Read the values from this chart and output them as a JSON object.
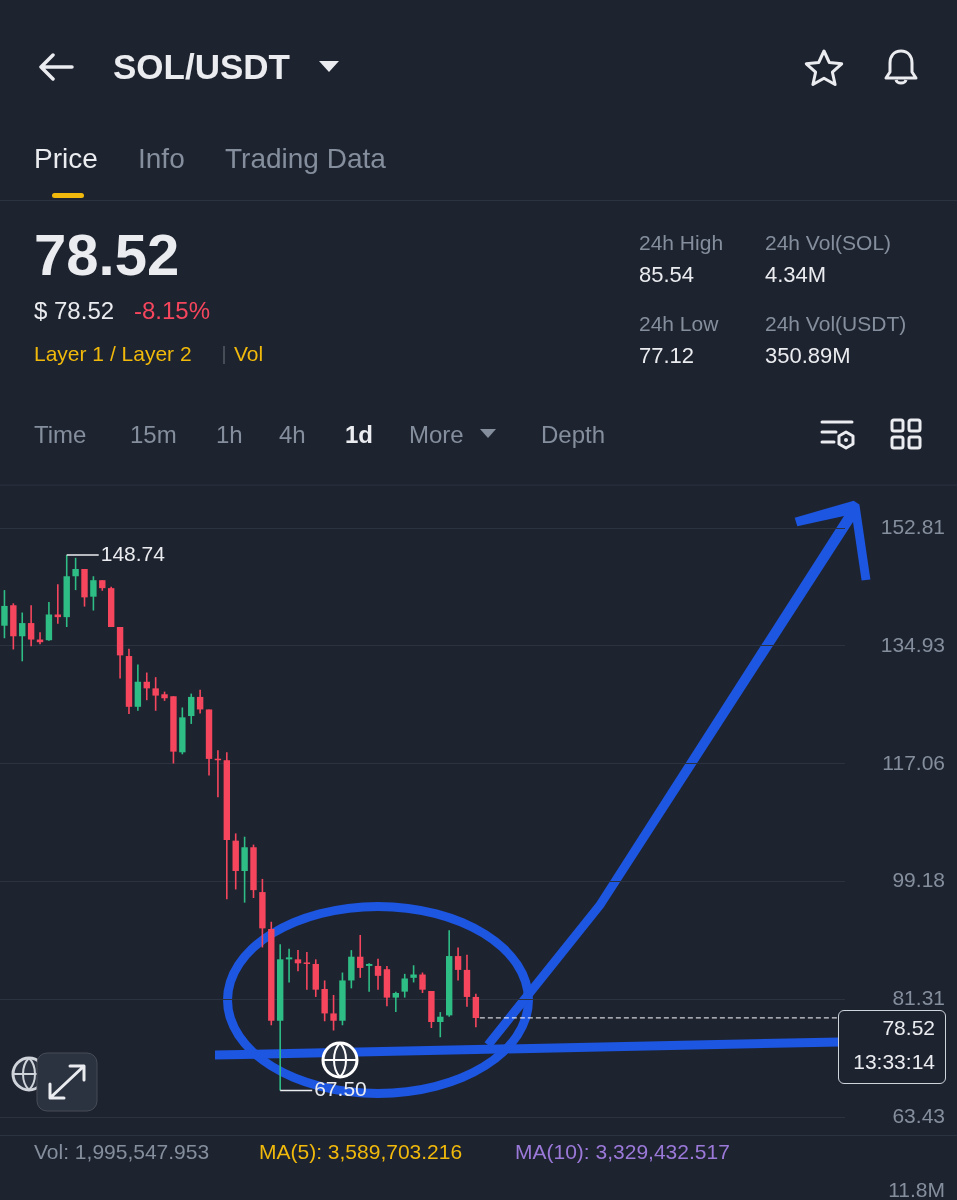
{
  "chart_data": {
    "type": "candlestick",
    "title": "SOL/USDT",
    "categories": [
      null,
      null,
      null,
      null,
      null,
      null,
      null,
      null,
      null,
      null,
      null,
      null,
      null,
      null,
      null,
      null,
      null,
      null,
      null,
      null,
      null,
      null,
      null,
      null,
      null,
      null,
      null,
      null,
      null,
      null,
      null,
      null,
      null,
      null,
      null,
      null,
      null,
      null,
      null,
      null,
      null,
      null,
      null,
      null,
      null,
      null,
      null,
      null,
      null,
      null,
      null,
      null,
      null,
      null,
      null,
      null,
      null,
      null,
      null,
      null,
      null,
      null,
      null,
      null,
      null,
      null,
      null,
      null,
      null,
      null,
      null,
      null,
      null,
      null,
      null,
      null,
      null,
      null,
      null,
      null,
      null,
      null,
      null,
      null,
      null,
      null,
      null,
      null,
      null,
      null,
      null,
      null,
      null,
      null,
      null
    ],
    "ohlc": [
      [
        138.0,
        143.4,
        136.1,
        141.0
      ],
      [
        141.1,
        141.4,
        134.4,
        136.4
      ],
      [
        136.4,
        140.0,
        132.6,
        138.4
      ],
      [
        138.4,
        141.1,
        134.9,
        135.9
      ],
      [
        135.9,
        137.0,
        135.2,
        135.5
      ],
      [
        135.8,
        141.6,
        135.7,
        139.7
      ],
      [
        139.7,
        144.3,
        138.3,
        139.3
      ],
      [
        139.3,
        148.74,
        137.8,
        145.5
      ],
      [
        145.5,
        148.3,
        143.4,
        146.6
      ],
      [
        146.6,
        146.6,
        140.9,
        142.3
      ],
      [
        142.4,
        145.5,
        140.3,
        144.9
      ],
      [
        144.9,
        144.9,
        143.3,
        143.7
      ],
      [
        143.7,
        143.9,
        137.8,
        137.8
      ],
      [
        137.8,
        137.8,
        130.0,
        133.5
      ],
      [
        133.4,
        134.5,
        124.6,
        125.7
      ],
      [
        125.7,
        132.1,
        125.1,
        129.5
      ],
      [
        129.5,
        130.9,
        126.7,
        128.5
      ],
      [
        128.5,
        130.2,
        125.1,
        127.4
      ],
      [
        127.6,
        128.0,
        126.6,
        127.0
      ],
      [
        127.3,
        127.3,
        117.1,
        118.9
      ],
      [
        118.8,
        125.6,
        118.5,
        124.1
      ],
      [
        124.3,
        127.7,
        123.1,
        127.2
      ],
      [
        127.2,
        128.3,
        124.7,
        125.3
      ],
      [
        125.3,
        125.3,
        115.3,
        117.8
      ],
      [
        117.8,
        119.1,
        112.0,
        117.6
      ],
      [
        117.6,
        118.8,
        96.5,
        105.5
      ],
      [
        105.4,
        106.5,
        98.0,
        100.8
      ],
      [
        100.8,
        106.0,
        96.0,
        104.4
      ],
      [
        104.4,
        104.8,
        96.7,
        97.9
      ],
      [
        97.6,
        99.6,
        89.2,
        92.1
      ],
      [
        92.0,
        93.1,
        77.4,
        78.1
      ],
      [
        78.1,
        89.7,
        67.5,
        87.4
      ],
      [
        87.4,
        89.0,
        83.9,
        87.7
      ],
      [
        87.4,
        88.8,
        85.6,
        86.8
      ],
      [
        86.8,
        88.5,
        82.8,
        86.7
      ],
      [
        86.7,
        87.4,
        81.7,
        82.8
      ],
      [
        82.9,
        84.2,
        78.0,
        79.2
      ],
      [
        79.2,
        82.0,
        76.6,
        78.1
      ],
      [
        78.1,
        85.4,
        77.4,
        84.2
      ],
      [
        84.2,
        88.8,
        83.0,
        87.8
      ],
      [
        87.8,
        91.1,
        84.6,
        86.1
      ],
      [
        86.4,
        86.8,
        82.5,
        86.7
      ],
      [
        86.4,
        87.5,
        82.8,
        84.9
      ],
      [
        85.9,
        86.4,
        80.3,
        81.6
      ],
      [
        81.6,
        82.5,
        79.4,
        82.3
      ],
      [
        82.5,
        85.2,
        81.6,
        84.5
      ],
      [
        84.6,
        86.5,
        83.9,
        85.1
      ],
      [
        85.1,
        85.4,
        82.3,
        82.8
      ],
      [
        82.6,
        82.6,
        77.0,
        77.9
      ],
      [
        77.9,
        79.4,
        75.6,
        78.7
      ],
      [
        78.9,
        91.8,
        78.7,
        87.9
      ],
      [
        87.9,
        89.2,
        84.2,
        85.8
      ],
      [
        85.8,
        88.1,
        80.2,
        81.7
      ],
      [
        81.7,
        82.2,
        77.12,
        78.52
      ],
      null,
      null,
      null,
      null,
      null,
      null,
      null,
      null,
      null,
      null,
      null,
      null,
      null,
      null,
      null,
      null,
      null,
      null,
      null,
      null,
      null,
      null,
      null,
      null,
      null,
      null,
      null,
      null,
      null,
      null,
      null,
      null,
      null,
      null,
      null,
      null,
      null,
      null,
      null,
      null,
      null
    ],
    "colors": [
      "#2ebd85",
      "#f6465d",
      "#2ebd85",
      "#f6465d",
      "#f6465d",
      "#2ebd85",
      "#f6465d",
      "#2ebd85",
      "#2ebd85",
      "#f6465d",
      "#2ebd85",
      "#f6465d",
      "#f6465d",
      "#f6465d",
      "#f6465d",
      "#2ebd85",
      "#f6465d",
      "#f6465d",
      "#f6465d",
      "#f6465d",
      "#2ebd85",
      "#2ebd85",
      "#f6465d",
      "#f6465d",
      "#f6465d",
      "#f6465d",
      "#f6465d",
      "#2ebd85",
      "#f6465d",
      "#f6465d",
      "#f6465d",
      "#2ebd85",
      "#2ebd85",
      "#f6465d",
      "#f6465d",
      "#f6465d",
      "#f6465d",
      "#f6465d",
      "#2ebd85",
      "#2ebd85",
      "#f6465d",
      "#2ebd85",
      "#f6465d",
      "#f6465d",
      "#2ebd85",
      "#2ebd85",
      "#2ebd85",
      "#f6465d",
      "#f6465d",
      "#2ebd85",
      "#2ebd85",
      "#f6465d",
      "#f6465d",
      "#f6465d",
      null,
      null,
      null,
      null,
      null,
      null,
      null,
      null,
      null,
      null,
      null,
      null,
      null,
      null,
      null,
      null,
      null,
      null,
      null,
      null,
      null,
      null,
      null,
      null,
      null,
      null,
      null,
      null,
      null,
      null,
      null,
      null,
      null,
      null,
      null,
      null,
      null,
      null,
      null,
      null,
      null
    ],
    "ylim": [
      63.43,
      159.4
    ],
    "yticks": [
      63.43,
      81.31,
      99.18,
      117.06,
      134.93,
      152.81
    ],
    "grid": "y",
    "tick_labels": "y",
    "ref_lines": [
      {
        "axis": "y",
        "value": 78.52,
        "label": "78.52",
        "color": "#ffffff",
        "line_style": "dashed"
      }
    ],
    "annotations": [
      "Price",
      "Info",
      "Trading Data",
      "78.52",
      "$ 78.52",
      "-8.15%",
      "Layer 1 / Layer 2",
      "Vol",
      "24h High",
      "85.54",
      "24h Vol(SOL)",
      "4.34M",
      "24h Low",
      "77.12",
      "24h Vol(USDT)",
      "350.89M",
      "Time",
      "15m",
      "1h",
      "4h",
      "1d",
      "More",
      "Depth",
      "Vol: 1,995,547.953",
      "MA(5): 3,589,703.216",
      "MA(10): 3,329,432.517",
      "11.8M",
      "13:33:14",
      "148.74",
      "67.50"
    ]
  }
}
